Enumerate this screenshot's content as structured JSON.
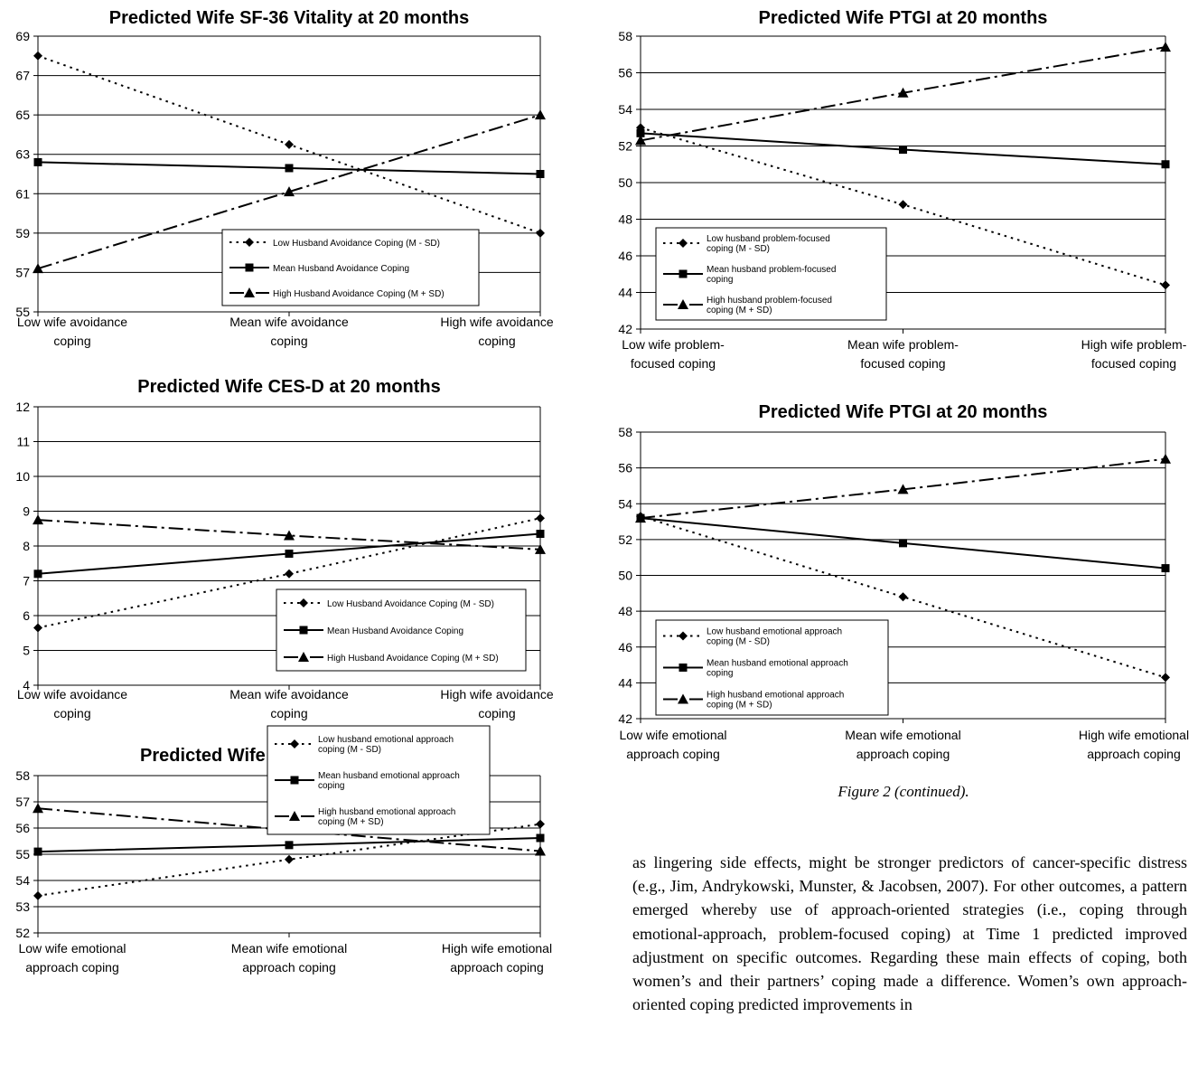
{
  "caption": "Figure 2 (continued).",
  "body_text": "as lingering side effects, might be stronger predictors of cancer-specific distress (e.g., Jim, Andrykowski, Munster, & Jacobsen, 2007). For other outcomes, a pattern emerged whereby use of approach-oriented strategies (i.e., coping through emotional-approach, problem-focused coping) at Time 1 predicted improved adjustment on specific outcomes. Regarding these main effects of coping, both women’s and their partners’ coping made a difference. Women’s own approach-oriented coping predicted improvements in",
  "chart_data": [
    {
      "id": "vitality",
      "type": "line",
      "title": "Predicted Wife SF-36 Vitality at 20 months",
      "ylim": [
        55,
        69
      ],
      "yticks": [
        55,
        57,
        59,
        61,
        63,
        65,
        67,
        69
      ],
      "categories": [
        [
          "Low wife avoidance",
          "coping"
        ],
        [
          "Mean wife avoidance",
          "coping"
        ],
        [
          "High wife avoidance",
          "coping"
        ]
      ],
      "series": [
        {
          "name": "Low Husband Avoidance Coping (M - SD)",
          "values": [
            68.0,
            63.5,
            59.0
          ]
        },
        {
          "name": "Mean Husband Avoidance Coping",
          "values": [
            62.6,
            62.3,
            62.0
          ]
        },
        {
          "name": "High Husband Avoidance Coping (M + SD)",
          "values": [
            57.2,
            61.1,
            65.0
          ]
        }
      ],
      "legend_layout": "single"
    },
    {
      "id": "cesd",
      "type": "line",
      "title": "Predicted Wife CES-D at 20 months",
      "ylim": [
        4,
        12
      ],
      "yticks": [
        4,
        5,
        6,
        7,
        8,
        9,
        10,
        11,
        12
      ],
      "categories": [
        [
          "Low wife avoidance",
          "coping"
        ],
        [
          "Mean wife avoidance",
          "coping"
        ],
        [
          "High wife avoidance",
          "coping"
        ]
      ],
      "series": [
        {
          "name": "Low Husband Avoidance Coping (M - SD)",
          "values": [
            5.65,
            7.2,
            8.8
          ]
        },
        {
          "name": "Mean Husband Avoidance Coping",
          "values": [
            7.2,
            7.78,
            8.35
          ]
        },
        {
          "name": "High Husband Avoidance Coping (M + SD)",
          "values": [
            8.75,
            8.3,
            7.9
          ]
        }
      ],
      "legend_layout": "single"
    },
    {
      "id": "rdas",
      "type": "line",
      "title": "Predicted Wife RDAS at 20 months",
      "ylim": [
        52,
        58
      ],
      "yticks": [
        52,
        53,
        54,
        55,
        56,
        57,
        58
      ],
      "categories": [
        [
          "Low wife emotional",
          "approach coping"
        ],
        [
          "Mean wife emotional",
          "approach coping"
        ],
        [
          "High wife emotional",
          "approach coping"
        ]
      ],
      "series": [
        {
          "name": [
            "Low husband emotional approach",
            "coping (M - SD)"
          ],
          "values": [
            53.42,
            54.8,
            56.15
          ]
        },
        {
          "name": [
            "Mean husband emotional approach",
            "coping"
          ],
          "values": [
            55.1,
            55.35,
            55.62
          ]
        },
        {
          "name": [
            "High husband emotional approach",
            "coping (M + SD)"
          ],
          "values": [
            56.75,
            55.92,
            55.12
          ]
        }
      ],
      "legend_layout": "double"
    },
    {
      "id": "ptgi1",
      "type": "line",
      "title": "Predicted Wife PTGI at 20 months",
      "ylim": [
        42,
        58
      ],
      "yticks": [
        42,
        44,
        46,
        48,
        50,
        52,
        54,
        56,
        58
      ],
      "categories": [
        [
          "Low wife problem-",
          "focused coping"
        ],
        [
          "Mean wife problem-",
          "focused coping"
        ],
        [
          "High wife problem-",
          "focused coping"
        ]
      ],
      "series": [
        {
          "name": [
            "Low husband problem-focused",
            "coping (M - SD)"
          ],
          "values": [
            53.0,
            48.8,
            44.4
          ]
        },
        {
          "name": [
            "Mean husband problem-focused",
            "coping"
          ],
          "values": [
            52.7,
            51.8,
            51.0
          ]
        },
        {
          "name": [
            "High husband problem-focused",
            "coping (M + SD)"
          ],
          "values": [
            52.3,
            54.9,
            57.4
          ]
        }
      ],
      "legend_layout": "double"
    },
    {
      "id": "ptgi2",
      "type": "line",
      "title": "Predicted Wife PTGI at 20 months",
      "ylim": [
        42,
        58
      ],
      "yticks": [
        42,
        44,
        46,
        48,
        50,
        52,
        54,
        56,
        58
      ],
      "categories": [
        [
          "Low wife emotional",
          "approach coping"
        ],
        [
          "Mean wife emotional",
          "approach coping"
        ],
        [
          "High wife emotional",
          "approach coping"
        ]
      ],
      "series": [
        {
          "name": [
            "Low  husband emotional approach",
            "coping (M - SD)"
          ],
          "values": [
            53.3,
            48.8,
            44.3
          ]
        },
        {
          "name": [
            "Mean husband emotional approach",
            "coping"
          ],
          "values": [
            53.2,
            51.8,
            50.4
          ]
        },
        {
          "name": [
            "High husband emotional approach",
            "coping (M + SD)"
          ],
          "values": [
            53.2,
            54.8,
            56.5
          ]
        }
      ],
      "legend_layout": "double"
    }
  ]
}
